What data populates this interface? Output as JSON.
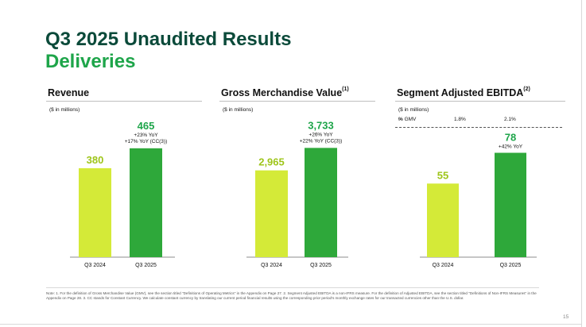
{
  "slide": {
    "title": "Q3 2025 Unaudited Results",
    "subtitle": "Deliveries",
    "footnote": "Note: 1. For the definition of Gross Merchandise Value (GMV), see the section titled \"Definitions of Operating Metrics\" in the Appendix on Page 27. 2. Segment Adjusted EBITDA is a non-IFRS measure. For the definition of Adjusted EBITDA, see the section titled \"Definitions of Non-IFRS Measures\" in the Appendix on Page 28. 3. CC stands for Constant Currency. We calculate constant currency by translating our current period financial results using the corresponding prior period's monthly exchange rates for our transacted currencies other than the U.S. dollar.",
    "page_number": "15"
  },
  "colors": {
    "title": "#0b4a3a",
    "accent_green": "#1ea54a",
    "bar_2024": "#d4ea38",
    "bar_2025": "#2ea83a",
    "label_2024": "#9ec51a",
    "label_2025": "#1ea54a"
  },
  "chart_data": [
    {
      "type": "bar",
      "title": "Revenue",
      "title_superscript": "",
      "units": "($ in millions)",
      "categories": [
        "Q3 2024",
        "Q3 2025"
      ],
      "values": [
        380,
        465
      ],
      "value_labels": [
        "380",
        "465"
      ],
      "annotations": [
        "+23% YoY",
        "+17% YoY (CC(3))"
      ],
      "ylim": [
        0,
        600
      ]
    },
    {
      "type": "bar",
      "title": "Gross Merchandise Value",
      "title_superscript": "(1)",
      "units": "($ in millions)",
      "categories": [
        "Q3 2024",
        "Q3 2025"
      ],
      "values": [
        2965,
        3733
      ],
      "value_labels": [
        "2,965",
        "3,733"
      ],
      "annotations": [
        "+26% YoY",
        "+22% YoY (CC(3))"
      ],
      "ylim": [
        0,
        4800
      ]
    },
    {
      "type": "bar",
      "title": "Segment Adjusted EBITDA",
      "title_superscript": "(2)",
      "units": "($ in millions)",
      "gmv_row": {
        "label": "% GMV",
        "label_superscript": "(1)",
        "values": [
          "1.8%",
          "2.1%"
        ]
      },
      "categories": [
        "Q3 2024",
        "Q3 2025"
      ],
      "values": [
        55,
        78
      ],
      "value_labels": [
        "55",
        "78"
      ],
      "annotations": [
        "+42% YoY"
      ],
      "ylim": [
        0,
        105
      ]
    }
  ]
}
